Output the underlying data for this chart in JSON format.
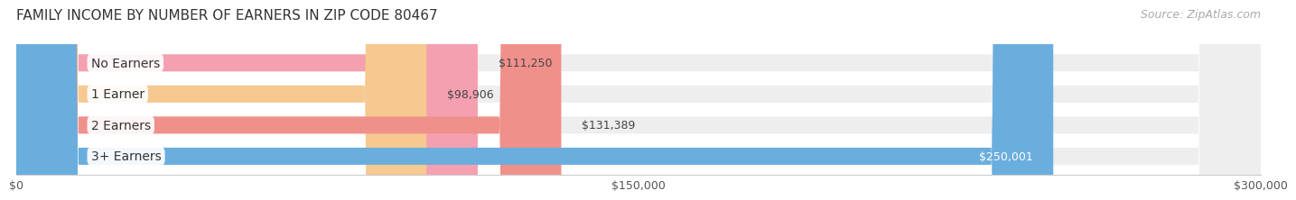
{
  "title": "FAMILY INCOME BY NUMBER OF EARNERS IN ZIP CODE 80467",
  "source": "Source: ZipAtlas.com",
  "categories": [
    "No Earners",
    "1 Earner",
    "2 Earners",
    "3+ Earners"
  ],
  "values": [
    111250,
    98906,
    131389,
    250001
  ],
  "bar_colors": [
    "#F4A0B0",
    "#F5C990",
    "#F0908A",
    "#6AAEDE"
  ],
  "bar_bg_color": "#EEEEEE",
  "label_colors": [
    "#555555",
    "#555555",
    "#555555",
    "#FFFFFF"
  ],
  "value_labels": [
    "$111,250",
    "$98,906",
    "$131,389",
    "$250,001"
  ],
  "xlim": [
    0,
    300000
  ],
  "xticks": [
    0,
    150000,
    300000
  ],
  "xtick_labels": [
    "$0",
    "$150,000",
    "$300,000"
  ],
  "background_color": "#FFFFFF",
  "bar_height": 0.55,
  "title_fontsize": 11,
  "source_fontsize": 9,
  "label_fontsize": 10,
  "value_fontsize": 9
}
